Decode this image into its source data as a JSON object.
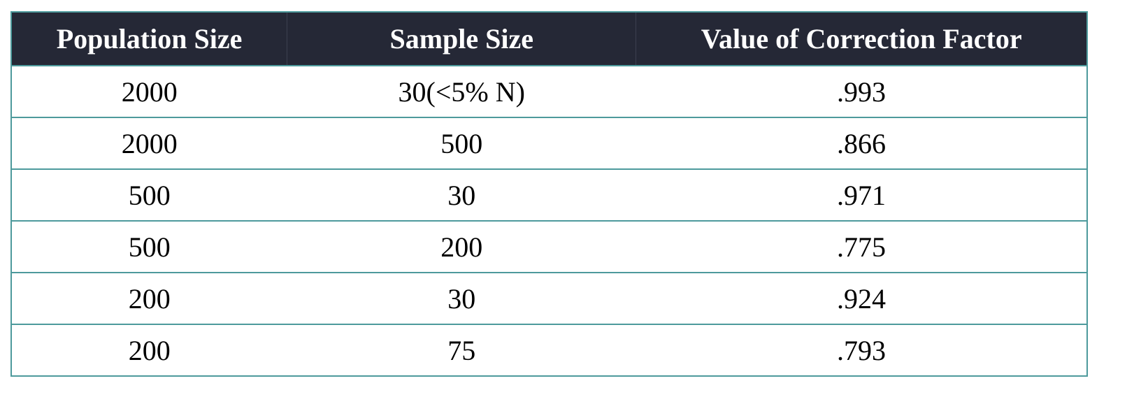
{
  "table": {
    "headers": [
      "Population Size",
      "Sample Size",
      "Value of Correction Factor"
    ],
    "rows": [
      [
        "2000",
        "30(<5% N)",
        ".993"
      ],
      [
        "2000",
        "500",
        ".866"
      ],
      [
        "500",
        "30",
        ".971"
      ],
      [
        "500",
        "200",
        ".775"
      ],
      [
        "200",
        "30",
        ".924"
      ],
      [
        "200",
        "75",
        ".793"
      ]
    ]
  },
  "colors": {
    "header_bg": "#252836",
    "header_text": "#ffffff",
    "border": "#4d9a9c"
  }
}
